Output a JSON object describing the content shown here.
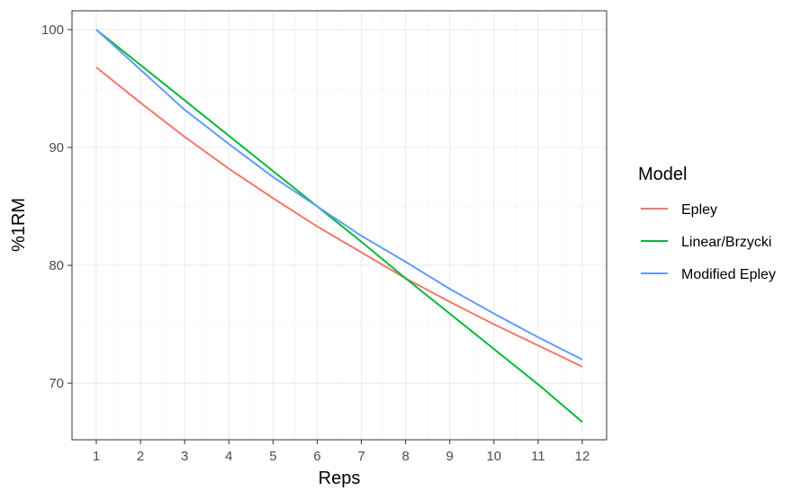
{
  "chart_data": {
    "type": "line",
    "xlabel": "Reps",
    "ylabel": "%1RM",
    "xlim": [
      0.45,
      12.55
    ],
    "ylim": [
      65.2,
      101.6
    ],
    "x_ticks": [
      1,
      2,
      3,
      4,
      5,
      6,
      7,
      8,
      9,
      10,
      11,
      12
    ],
    "x_tick_labels": [
      "1",
      "2",
      "3",
      "4",
      "5",
      "6",
      "7",
      "8",
      "9",
      "10",
      "11",
      "12"
    ],
    "y_ticks": [
      70,
      80,
      90,
      100
    ],
    "y_tick_labels": [
      "70",
      "80",
      "90",
      "100"
    ],
    "grid": true,
    "legend": {
      "title": "Model",
      "position": "right"
    },
    "x": [
      1,
      2,
      3,
      4,
      5,
      6,
      7,
      8,
      9,
      10,
      11,
      12
    ],
    "series": [
      {
        "name": "Epley",
        "color": "#F8766D",
        "values": [
          96.8,
          93.8,
          90.9,
          88.2,
          85.7,
          83.3,
          81.1,
          78.9,
          76.9,
          75.0,
          73.2,
          71.4
        ]
      },
      {
        "name": "Linear/Brzycki",
        "color": "#00BA38",
        "values": [
          100.0,
          97.0,
          94.0,
          91.0,
          88.0,
          85.0,
          82.0,
          78.9,
          75.9,
          72.9,
          69.9,
          66.7
        ]
      },
      {
        "name": "Modified Epley",
        "color": "#619CFF",
        "values": [
          100.0,
          96.6,
          93.2,
          90.3,
          87.5,
          85.0,
          82.5,
          80.3,
          78.0,
          75.9,
          73.9,
          72.0
        ]
      }
    ]
  }
}
